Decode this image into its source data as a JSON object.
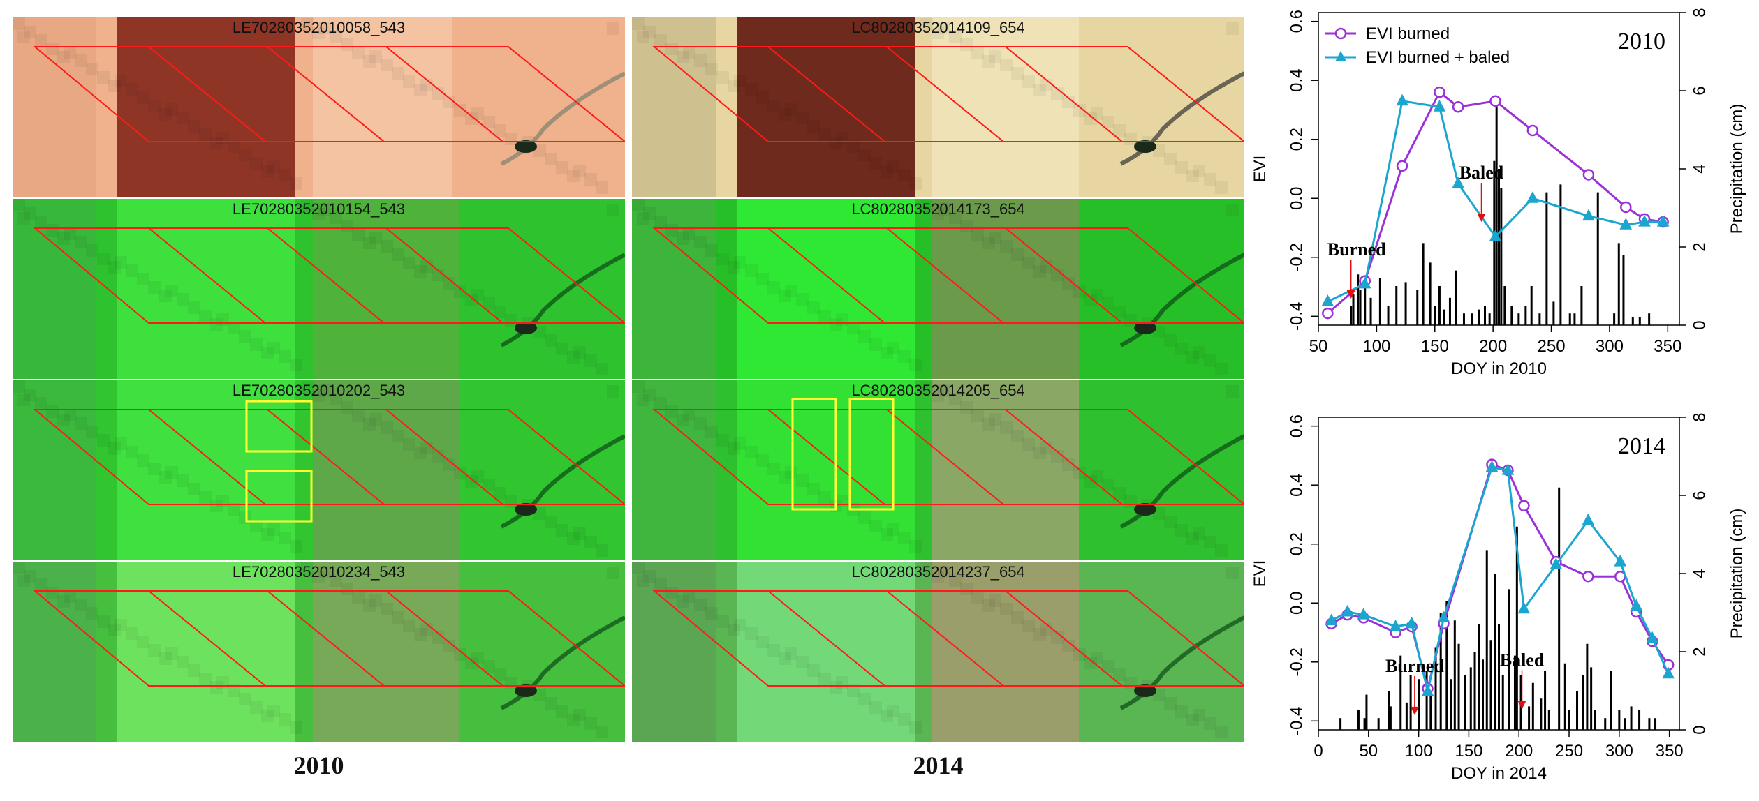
{
  "columns": [
    {
      "year_label": "2010",
      "panels": [
        {
          "label": "LE70280352010058_543",
          "scene": "dry",
          "boxes": []
        },
        {
          "label": "LE70280352010154_543",
          "scene": "green",
          "boxes": []
        },
        {
          "label": "LE70280352010202_543",
          "scene": "green-baled",
          "boxes": [
            "a",
            "b"
          ]
        },
        {
          "label": "LE70280352010234_543",
          "scene": "light-green",
          "boxes": []
        }
      ]
    },
    {
      "year_label": "2014",
      "panels": [
        {
          "label": "LC80280352014109_654",
          "scene": "dry",
          "boxes": []
        },
        {
          "label": "LC80280352014173_654",
          "scene": "green",
          "boxes": []
        },
        {
          "label": "LC80280352014205_654",
          "scene": "green-baled",
          "boxes": [
            "a",
            "b"
          ]
        },
        {
          "label": "LC80280352014237_654",
          "scene": "light-green",
          "boxes": []
        }
      ]
    }
  ],
  "colors": {
    "parcel_outline": "#ff1a1a",
    "baled_box": "#ffff33",
    "evi_burned": "#9b30d9",
    "evi_burned_baled": "#1ba6cf",
    "precip_bars": "#000000",
    "event_arrow": "#e01010"
  },
  "chart_data": [
    {
      "type": "line",
      "title": "2010",
      "xlabel": "DOY in 2010",
      "ylabel": "EVI",
      "y2label": "Precipitation (cm)",
      "xlim": [
        50,
        360
      ],
      "ylim": [
        -0.43,
        0.63
      ],
      "y2lim": [
        0,
        8
      ],
      "xticks": [
        50,
        100,
        150,
        200,
        250,
        300,
        350
      ],
      "yticks": [
        -0.4,
        -0.2,
        0.0,
        0.2,
        0.4,
        0.6
      ],
      "y2ticks": [
        0,
        2,
        4,
        6,
        8
      ],
      "legend": {
        "position": "top-left",
        "entries": [
          "EVI burned",
          "EVI burned + baled"
        ]
      },
      "series": [
        {
          "name": "EVI burned",
          "marker": "circle",
          "x": [
            58,
            90,
            122,
            154,
            170,
            202,
            234,
            282,
            314,
            330,
            346
          ],
          "y": [
            -0.39,
            -0.28,
            0.11,
            0.36,
            0.31,
            0.33,
            0.23,
            0.08,
            -0.03,
            -0.07,
            -0.08
          ]
        },
        {
          "name": "EVI burned + baled",
          "marker": "triangle",
          "x": [
            58,
            90,
            122,
            154,
            170,
            202,
            234,
            282,
            314,
            330,
            346
          ],
          "y": [
            -0.35,
            -0.29,
            0.33,
            0.31,
            0.05,
            -0.13,
            0.0,
            -0.06,
            -0.09,
            -0.08,
            -0.08
          ]
        }
      ],
      "precipitation": {
        "x": [
          78,
          80,
          84,
          86,
          90,
          95,
          103,
          110,
          117,
          125,
          135,
          140,
          146,
          150,
          154,
          158,
          163,
          168,
          175,
          182,
          188,
          193,
          197,
          201,
          203,
          205,
          207,
          210,
          216,
          222,
          228,
          233,
          240,
          246,
          252,
          258,
          266,
          270,
          276,
          290,
          304,
          308,
          312,
          320,
          326,
          334
        ],
        "y": [
          0.5,
          0.8,
          1.3,
          0.9,
          1.2,
          0.7,
          1.2,
          0.5,
          1.0,
          1.1,
          0.9,
          2.1,
          1.6,
          0.5,
          1.0,
          0.4,
          0.7,
          1.4,
          0.3,
          0.3,
          0.4,
          0.5,
          0.3,
          4.2,
          5.6,
          4.0,
          3.5,
          1.0,
          0.5,
          0.3,
          0.5,
          1.0,
          0.3,
          3.4,
          0.6,
          3.6,
          0.3,
          0.3,
          1.0,
          3.4,
          0.3,
          2.1,
          1.8,
          0.2,
          0.2,
          0.3
        ]
      },
      "annotations": [
        {
          "text": "Burned",
          "x": 78,
          "y": -0.34
        },
        {
          "text": "Baled",
          "x": 190,
          "y": -0.08
        }
      ]
    },
    {
      "type": "line",
      "title": "2014",
      "xlabel": "DOY in 2014",
      "ylabel": "EVI",
      "y2label": "Precipitation (cm)",
      "xlim": [
        0,
        360
      ],
      "ylim": [
        -0.43,
        0.63
      ],
      "y2lim": [
        0,
        8
      ],
      "xticks": [
        0,
        50,
        100,
        150,
        200,
        250,
        300,
        350
      ],
      "yticks": [
        -0.4,
        -0.2,
        0.0,
        0.2,
        0.4,
        0.6
      ],
      "y2ticks": [
        0,
        2,
        4,
        6,
        8
      ],
      "series": [
        {
          "name": "EVI burned",
          "marker": "circle",
          "x": [
            13,
            29,
            45,
            77,
            93,
            109,
            125,
            173,
            189,
            205,
            237,
            269,
            301,
            317,
            333,
            349
          ],
          "y": [
            -0.07,
            -0.04,
            -0.05,
            -0.1,
            -0.08,
            -0.29,
            -0.07,
            0.47,
            0.45,
            0.33,
            0.14,
            0.09,
            0.09,
            -0.03,
            -0.13,
            -0.21
          ]
        },
        {
          "name": "EVI burned + baled",
          "marker": "triangle",
          "x": [
            13,
            29,
            45,
            77,
            93,
            109,
            125,
            173,
            189,
            205,
            237,
            269,
            301,
            317,
            333,
            349
          ],
          "y": [
            -0.06,
            -0.03,
            -0.04,
            -0.08,
            -0.07,
            -0.3,
            -0.05,
            0.46,
            0.45,
            -0.02,
            0.13,
            0.28,
            0.14,
            -0.01,
            -0.12,
            -0.24
          ]
        }
      ],
      "precipitation": {
        "x": [
          22,
          40,
          46,
          48,
          60,
          70,
          72,
          82,
          88,
          92,
          100,
          108,
          112,
          117,
          122,
          128,
          132,
          136,
          140,
          146,
          152,
          156,
          160,
          164,
          168,
          172,
          176,
          180,
          184,
          190,
          196,
          198,
          202,
          210,
          214,
          222,
          226,
          230,
          240,
          246,
          250,
          258,
          264,
          268,
          272,
          276,
          286,
          292,
          300,
          306,
          312,
          320,
          330,
          336
        ],
        "y": [
          0.3,
          0.5,
          0.3,
          0.9,
          0.3,
          1.0,
          0.6,
          1.9,
          0.7,
          1.4,
          1.3,
          1.5,
          0.9,
          2.1,
          3.0,
          3.3,
          1.3,
          2.8,
          2.2,
          1.4,
          1.6,
          2.0,
          2.7,
          1.8,
          4.6,
          2.3,
          4.0,
          2.7,
          1.4,
          3.6,
          1.9,
          5.2,
          1.4,
          0.6,
          1.2,
          0.8,
          1.5,
          0.5,
          6.2,
          1.7,
          0.5,
          1.0,
          1.4,
          2.2,
          1.6,
          0.5,
          0.3,
          1.5,
          0.5,
          0.3,
          0.6,
          0.5,
          0.3,
          0.3
        ]
      },
      "annotations": [
        {
          "text": "Burned",
          "x": 96,
          "y": -0.38
        },
        {
          "text": "Baled",
          "x": 203,
          "y": -0.36
        }
      ]
    }
  ]
}
